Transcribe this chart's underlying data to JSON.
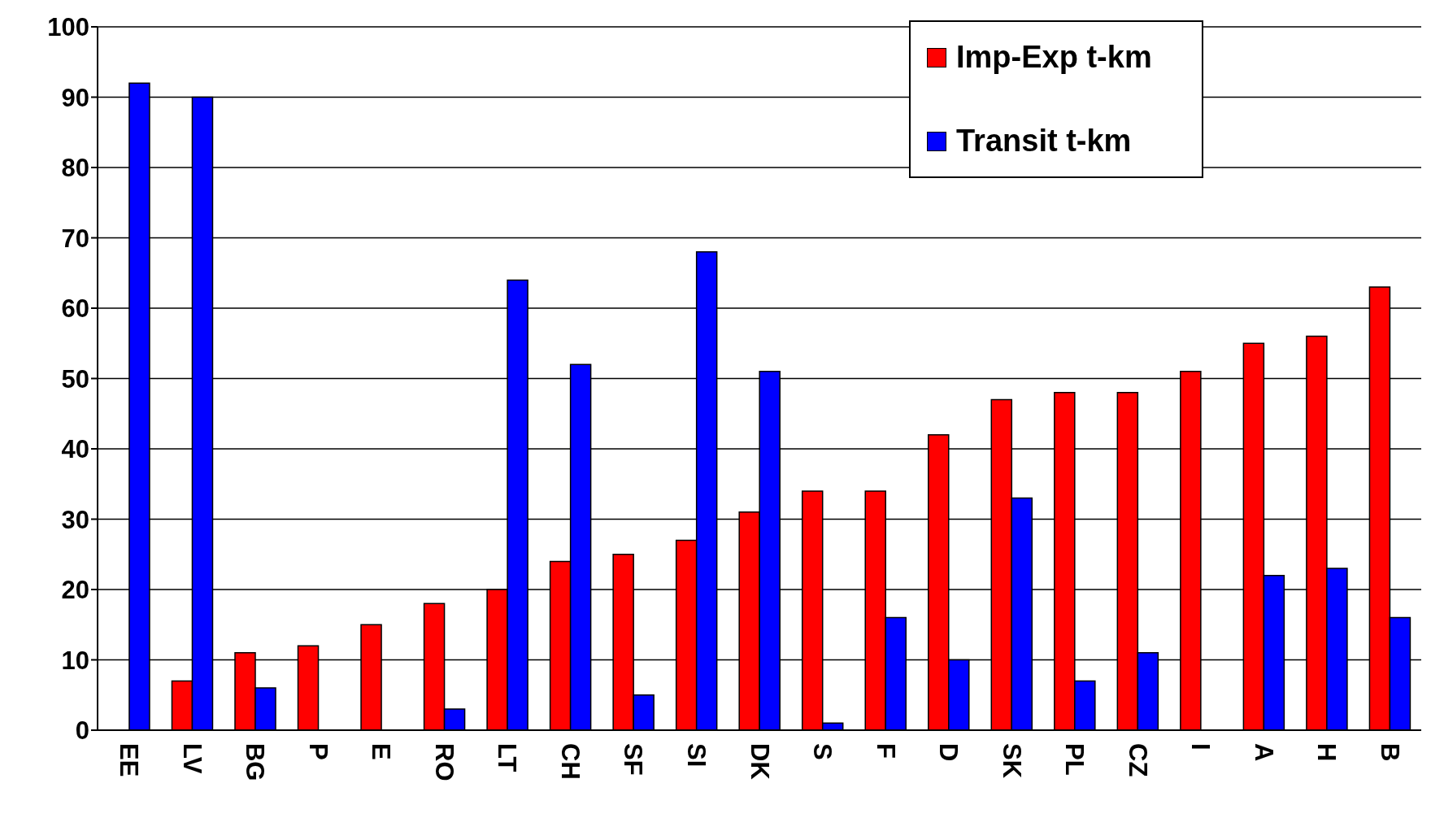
{
  "chart_data": {
    "type": "bar",
    "categories": [
      "EE",
      "LV",
      "BG",
      "P",
      "E",
      "RO",
      "LT",
      "CH",
      "SF",
      "SI",
      "DK",
      "S",
      "F",
      "D",
      "SK",
      "PL",
      "CZ",
      "I",
      "A",
      "H",
      "B"
    ],
    "series": [
      {
        "name": "Imp-Exp t-km",
        "color": "#ff0000",
        "values": [
          0,
          7,
          11,
          12,
          15,
          18,
          20,
          24,
          25,
          27,
          31,
          34,
          34,
          42,
          47,
          48,
          48,
          51,
          55,
          56,
          63
        ]
      },
      {
        "name": "Transit t-km",
        "color": "#0000ff",
        "values": [
          92,
          90,
          6,
          0,
          0,
          3,
          64,
          52,
          5,
          68,
          51,
          1,
          16,
          10,
          33,
          7,
          11,
          0,
          22,
          23,
          16
        ]
      }
    ],
    "ylim": [
      0,
      100
    ],
    "yticks": [
      0,
      10,
      20,
      30,
      40,
      50,
      60,
      70,
      80,
      90,
      100
    ],
    "grid": "y",
    "legend": "top right"
  }
}
